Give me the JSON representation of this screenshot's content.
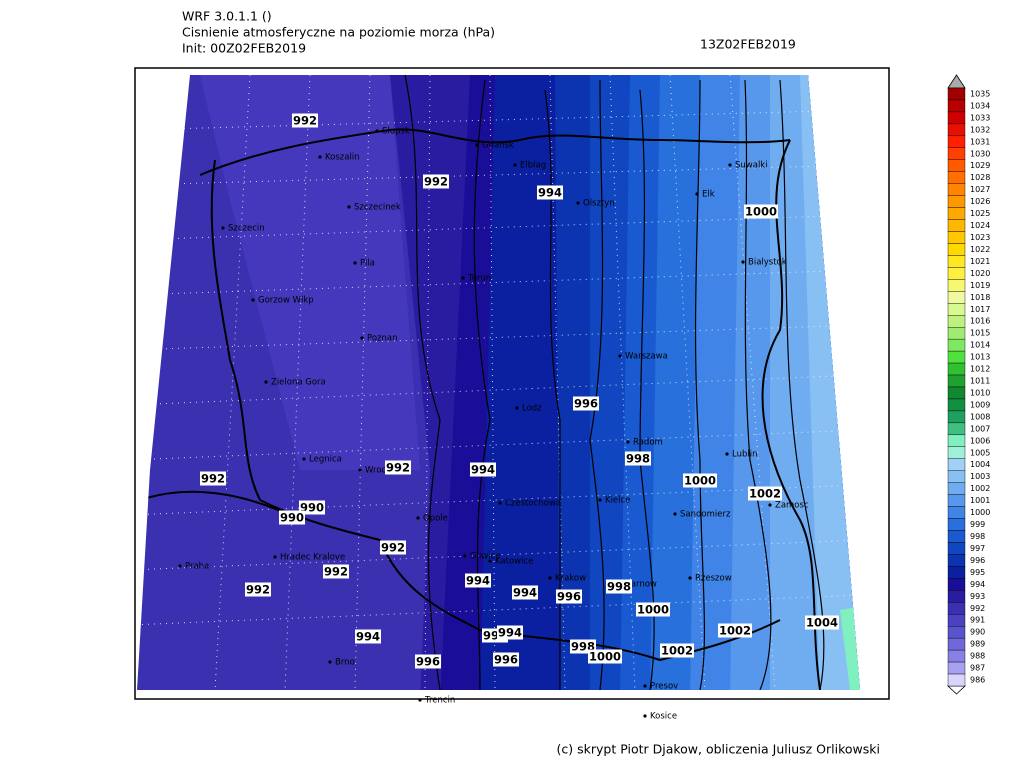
{
  "header": {
    "model": "WRF 3.0.1.1 ()",
    "title": "Cisnienie atmosferyczne na poziomie morza (hPa)",
    "init": "Init: 00Z02FEB2019",
    "valid": "13Z02FEB2019"
  },
  "cities": [
    "Slupsk",
    "Koszalin",
    "Gdansk",
    "Elblag",
    "Szczecinek",
    "Olsztyn",
    "Elk",
    "Suwalki",
    "Szczecin",
    "Pila",
    "Torun",
    "Bialystok",
    "Gorzow Wlkp",
    "Poznan",
    "Warszawa",
    "Zielona Gora",
    "Lodz",
    "Radom",
    "Lublin",
    "Legnica",
    "Wroclaw",
    "Kielce",
    "Czestochowa",
    "Zamosc",
    "Opole",
    "Sandomierz",
    "Gliwice",
    "Katowice",
    "Hradec Kralove",
    "Praha",
    "Krakow",
    "Tarnow",
    "Rzeszow",
    "Brno",
    "Trencin",
    "Presov",
    "Kosice"
  ],
  "contour_labels": [
    992,
    992,
    994,
    1000,
    996,
    998,
    994,
    992,
    992,
    1000,
    1002,
    990,
    990,
    992,
    992,
    994,
    994,
    996,
    998,
    992,
    1000,
    1002,
    1004,
    994,
    996,
    994,
    998,
    1000,
    1002,
    996,
    996
  ],
  "colorbar": {
    "levels": [
      1035,
      1034,
      1033,
      1032,
      1031,
      1030,
      1029,
      1028,
      1027,
      1026,
      1025,
      1024,
      1023,
      1022,
      1021,
      1020,
      1019,
      1018,
      1017,
      1016,
      1015,
      1014,
      1013,
      1012,
      1011,
      1010,
      1009,
      1008,
      1007,
      1006,
      1005,
      1004,
      1003,
      1002,
      1001,
      1000,
      999,
      998,
      997,
      996,
      995,
      994,
      993,
      992,
      991,
      990,
      989,
      988,
      987,
      986
    ],
    "colors": [
      "#a00000",
      "#b80000",
      "#d00000",
      "#e81000",
      "#ff2000",
      "#ff4000",
      "#ff5a00",
      "#ff7000",
      "#ff8400",
      "#ff9800",
      "#ffa800",
      "#ffb800",
      "#ffc800",
      "#ffd800",
      "#ffe820",
      "#fff040",
      "#f8f870",
      "#f0f8a0",
      "#d8f890",
      "#c0f080",
      "#a0ec70",
      "#80e860",
      "#50e040",
      "#30c030",
      "#20a030",
      "#108830",
      "#109040",
      "#20a060",
      "#40c080",
      "#80f0c0",
      "#a0f0d8",
      "#a0d0f8",
      "#88c0f4",
      "#70acf0",
      "#5898ec",
      "#4084e8",
      "#2870dc",
      "#1a5ad0",
      "#1046c0",
      "#0c34b0",
      "#0a20a0",
      "#1a0e98",
      "#2a1ca0",
      "#3a30b0",
      "#4a42c0",
      "#5a54cc",
      "#7068d8",
      "#8880e4",
      "#a8a0f0",
      "#d8d4fc"
    ]
  },
  "footer": {
    "credits": "(c) skrypt Piotr Djakow, obliczenia Juliusz Orlikowski"
  }
}
